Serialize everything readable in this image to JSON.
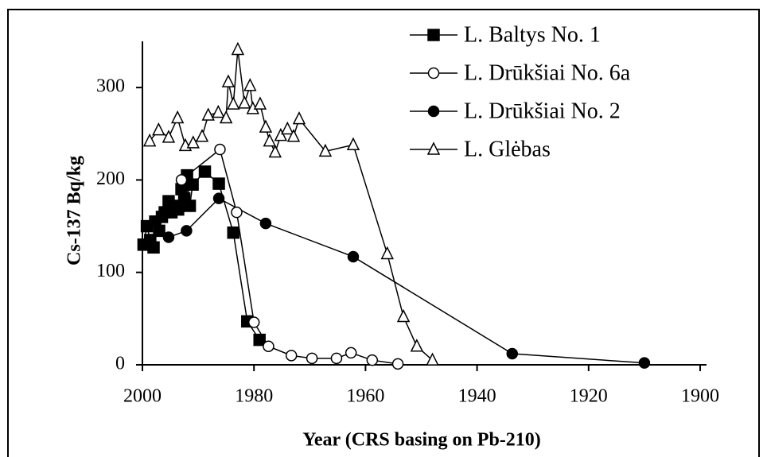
{
  "chart_data": {
    "type": "line",
    "x_label": "Year (CRS basing on Pb-210)",
    "y_label": "Cs-137  Bq/kg",
    "xlim": [
      2000,
      1900
    ],
    "xticks": [
      2000,
      1980,
      1960,
      1940,
      1920,
      1900
    ],
    "ylim": [
      0,
      350
    ],
    "yticks": [
      0,
      100,
      200,
      300
    ],
    "legend": "top-right",
    "series": [
      {
        "name": "L. Baltys No. 1",
        "color": "#000000",
        "marker": "square-filled",
        "x": [
          1999.8,
          1999.2,
          1998.6,
          1998.0,
          1997.7,
          1997.0,
          1996.5,
          1996.0,
          1995.3,
          1994.8,
          1994.2,
          1993.6,
          1993.0,
          1992.5,
          1992.0,
          1991.5,
          1991.0,
          1988.8,
          1986.3,
          1983.7,
          1981.2,
          1979.0
        ],
        "values": [
          130,
          150,
          135,
          127,
          155,
          145,
          160,
          165,
          177,
          165,
          172,
          168,
          190,
          180,
          205,
          172,
          195,
          209,
          196,
          143,
          47,
          27
        ]
      },
      {
        "name": "L. Drūkšiai No. 6a",
        "color": "#000000",
        "marker": "circle-open",
        "x": [
          1993.0,
          1986.1,
          1983.1,
          1980.0,
          1977.4,
          1973.3,
          1969.6,
          1965.2,
          1962.6,
          1958.8,
          1954.2
        ],
        "values": [
          200,
          233,
          165,
          46,
          20,
          10,
          7,
          7,
          13,
          5,
          1
        ]
      },
      {
        "name": "L. Drūkšiai No. 2",
        "color": "#000000",
        "marker": "circle-filled",
        "x": [
          1995.3,
          1992.1,
          1986.3,
          1977.9,
          1962.2,
          1933.7,
          1910.0
        ],
        "values": [
          138,
          145,
          180,
          153,
          117,
          12,
          2
        ]
      },
      {
        "name": "L. Glėbas",
        "color": "#000000",
        "marker": "triangle-open",
        "x": [
          1998.7,
          1997.1,
          1995.3,
          1993.7,
          1992.3,
          1990.9,
          1989.3,
          1988.2,
          1986.4,
          1985.0,
          1984.6,
          1983.7,
          1982.9,
          1981.7,
          1980.7,
          1980.2,
          1978.9,
          1977.9,
          1977.2,
          1976.2,
          1975.2,
          1974.0,
          1972.9,
          1971.9,
          1967.2,
          1962.2,
          1956.1,
          1953.2,
          1950.8,
          1948.0
        ],
        "values": [
          242,
          254,
          246,
          267,
          237,
          240,
          247,
          270,
          273,
          267,
          306,
          282,
          341,
          283,
          302,
          277,
          282,
          257,
          242,
          230,
          248,
          255,
          247,
          266,
          231,
          238,
          120,
          52,
          20,
          5
        ]
      }
    ]
  }
}
